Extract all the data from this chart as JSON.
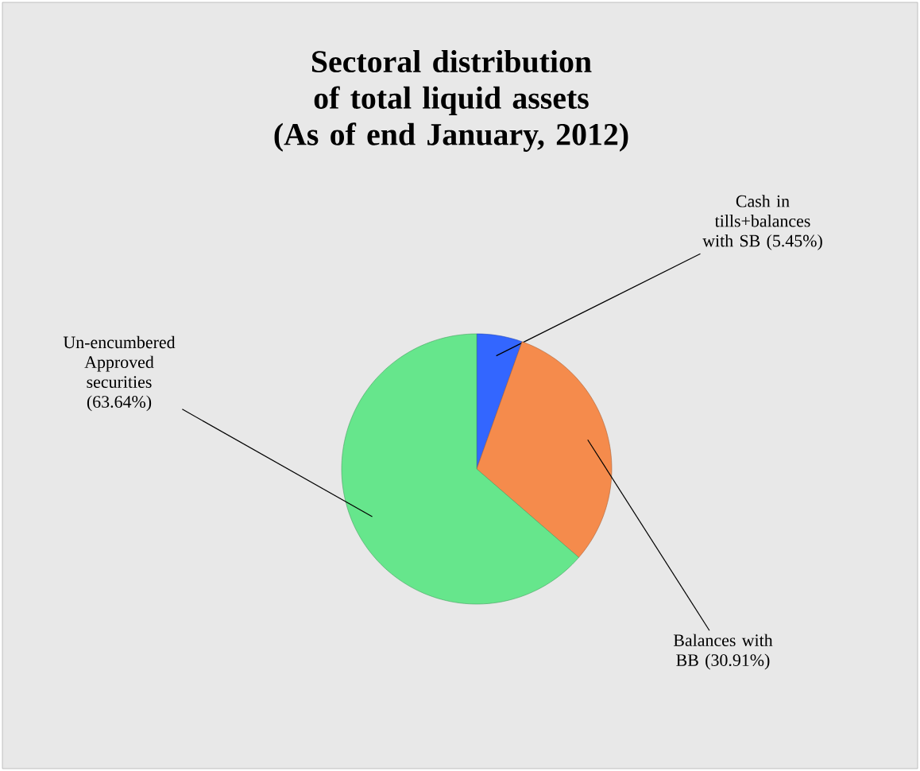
{
  "chart_data": {
    "type": "pie",
    "title": "Sectoral distribution of total liquid assets",
    "subtitle": "(As of end January, 2012)",
    "categories": [
      "Cash in tills+balances with SB (5.45%)",
      "Balances with BB (30.91%)",
      "Un-encumbered Approved securities (63.64%)"
    ],
    "values": [
      5.45,
      30.91,
      63.64
    ],
    "colors": [
      "#3366ff",
      "#f58b4c",
      "#66e68c"
    ]
  }
}
